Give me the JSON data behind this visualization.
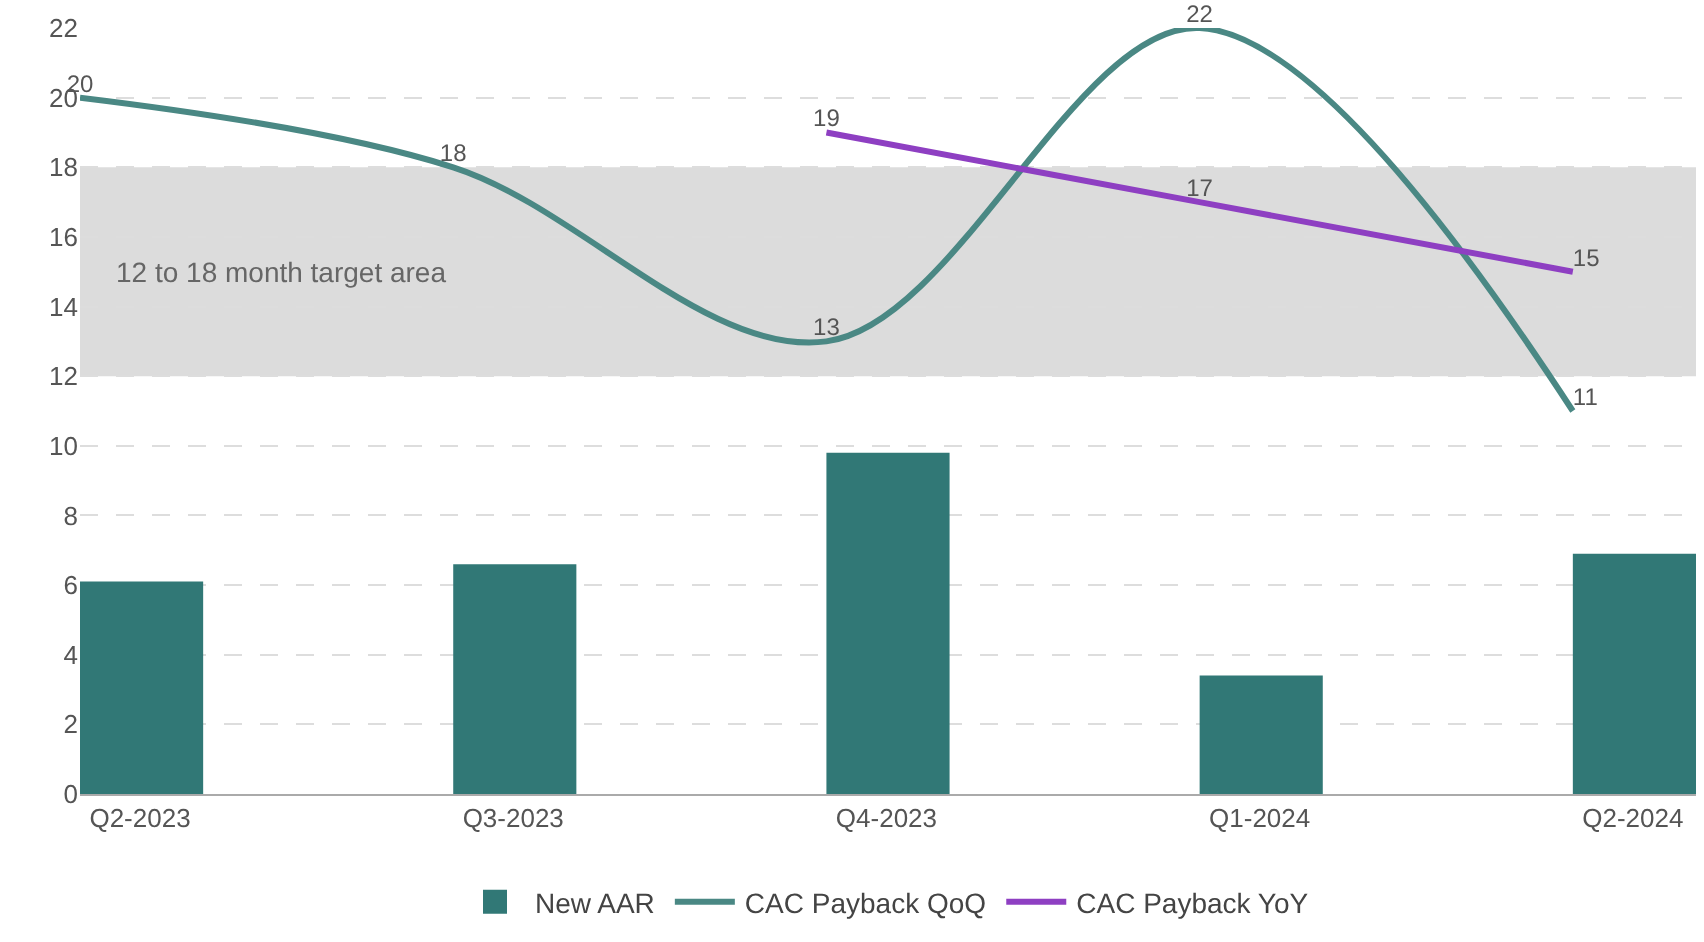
{
  "chart_data": {
    "type": "bar",
    "categories": [
      "Q2-2023",
      "Q3-2023",
      "Q4-2023",
      "Q1-2024",
      "Q2-2024"
    ],
    "series": [
      {
        "name": "New AAR",
        "color": "#317876",
        "values": [
          6.1,
          6.6,
          9.8,
          3.4,
          6.9
        ]
      },
      {
        "name": "CAC Payback QoQ",
        "type": "line",
        "color": "#4a8884",
        "values": [
          20,
          18,
          13,
          22,
          11
        ],
        "value_labels": [
          "20",
          "18",
          "13",
          "22",
          "11"
        ]
      },
      {
        "name": "CAC Payback YoY",
        "type": "line",
        "color": "#8e3fc2",
        "values": [
          null,
          null,
          19,
          17,
          15
        ],
        "value_labels": [
          null,
          null,
          "19",
          "17",
          "15"
        ]
      }
    ],
    "ylim": [
      0,
      22
    ],
    "yticks": [
      0,
      2,
      4,
      6,
      8,
      10,
      12,
      14,
      16,
      18,
      20,
      22
    ],
    "grid": "y",
    "legend": "bottom",
    "marker": "none",
    "line_style": "solid",
    "bands": [
      {
        "axis": "y",
        "from": 12,
        "to": 18,
        "label": "12 to 18 month target area",
        "color": "#dcdcdc"
      }
    ]
  }
}
